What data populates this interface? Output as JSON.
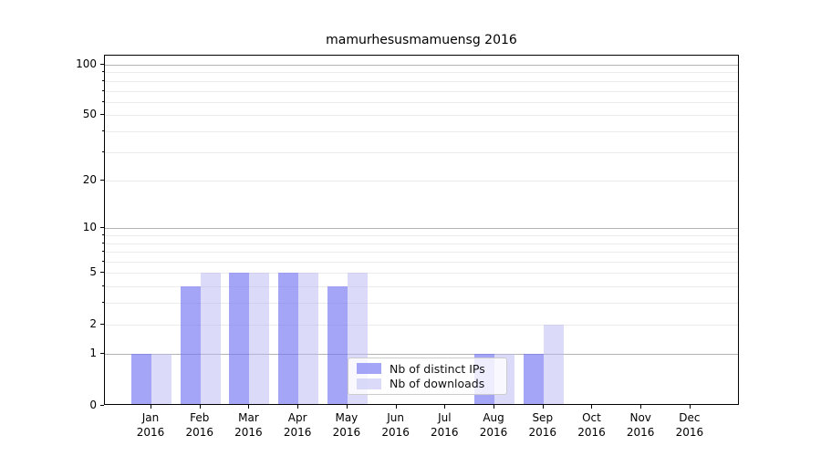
{
  "title": "mamurhesusmamuensg 2016",
  "legend": {
    "items": [
      {
        "label": "Nb of distinct IPs",
        "color": "rgba(117,117,243,0.65)"
      },
      {
        "label": "Nb of downloads",
        "color": "rgba(183,183,243,0.5)"
      }
    ]
  },
  "colors": {
    "distinct_ips_bar": "rgba(117,117,243,0.65)",
    "downloads_bar": "rgba(183,183,243,0.5)",
    "major_gridline": "#b3b3b3",
    "minor_gridline": "#ebebeb",
    "axis": "#000000",
    "background": "#ffffff"
  },
  "chart_data": {
    "type": "bar",
    "title": "mamurhesusmamuensg 2016",
    "xlabel": "",
    "ylabel": "",
    "categories": [
      "Jan 2016",
      "Feb 2016",
      "Mar 2016",
      "Apr 2016",
      "May 2016",
      "Jun 2016",
      "Jul 2016",
      "Aug 2016",
      "Sep 2016",
      "Oct 2016",
      "Nov 2016",
      "Dec 2016"
    ],
    "series": [
      {
        "name": "Nb of distinct IPs",
        "values": [
          1,
          4,
          5,
          5,
          4,
          0,
          0,
          1,
          1,
          0,
          0,
          0
        ]
      },
      {
        "name": "Nb of downloads",
        "values": [
          1,
          5,
          5,
          5,
          5,
          0,
          0,
          1,
          2,
          0,
          0,
          0
        ]
      }
    ],
    "yticks": [
      0,
      1,
      2,
      5,
      10,
      20,
      50,
      100
    ],
    "major_grid_values": [
      1,
      10,
      100
    ],
    "minor_grid_values": [
      2,
      3,
      4,
      5,
      6,
      7,
      8,
      9,
      20,
      30,
      40,
      50,
      60,
      70,
      80,
      90
    ],
    "scale": "log10(1+y)",
    "ylim": [
      0,
      113
    ],
    "grid": true,
    "legend_position": "lower center"
  }
}
